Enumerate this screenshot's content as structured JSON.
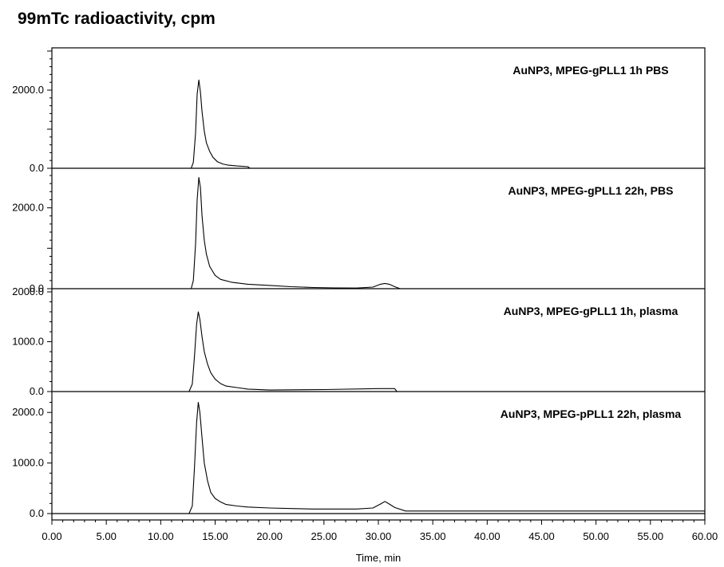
{
  "chart_data": {
    "type": "line",
    "title": "99mTc radioactivity, cpm",
    "xlabel": "Time, min",
    "ylabel": "",
    "xlim": [
      0,
      60
    ],
    "x_ticks": [
      "0.00",
      "5.00",
      "10.00",
      "15.00",
      "20.00",
      "25.00",
      "30.00",
      "35.00",
      "40.00",
      "45.00",
      "50.00",
      "55.00",
      "60.00"
    ],
    "grid": false,
    "panels": [
      {
        "name": "AuNP3, MPEG-gPLL1 1h PBS",
        "ylim": [
          0,
          3000
        ],
        "y_ticks": [
          {
            "value": 0,
            "label": "0.0"
          },
          {
            "value": 2000,
            "label": "2000.0"
          }
        ],
        "x": [
          0,
          12.8,
          13.0,
          13.2,
          13.35,
          13.5,
          13.65,
          13.8,
          14.0,
          14.2,
          14.5,
          14.8,
          15.2,
          15.7,
          16.2,
          17.0,
          18.0,
          18.2,
          60
        ],
        "y": [
          0,
          0,
          150,
          900,
          1900,
          2260,
          1950,
          1450,
          950,
          650,
          430,
          280,
          170,
          110,
          80,
          60,
          40,
          0,
          0
        ]
      },
      {
        "name": "AuNP3, MPEG-gPLL1 22h, PBS",
        "ylim": [
          0,
          2900
        ],
        "y_ticks": [
          {
            "value": 0,
            "label": "0.0"
          },
          {
            "value": 2000,
            "label": "2000.0"
          }
        ],
        "x": [
          0,
          12.8,
          13.0,
          13.2,
          13.35,
          13.5,
          13.65,
          13.8,
          14.0,
          14.2,
          14.5,
          15.0,
          15.5,
          16.5,
          18.0,
          20.0,
          22.0,
          24.0,
          26.0,
          28.0,
          29.5,
          30.2,
          30.6,
          31.0,
          31.5,
          32.0,
          60
        ],
        "y": [
          0,
          0,
          200,
          1100,
          2200,
          2750,
          2500,
          1800,
          1200,
          850,
          550,
          330,
          230,
          160,
          110,
          80,
          50,
          30,
          20,
          15,
          40,
          110,
          130,
          110,
          50,
          0,
          0
        ]
      },
      {
        "name": "AuNP3, MPEG-gPLL1 1h, plasma",
        "ylim": [
          0,
          2000
        ],
        "y_ticks": [
          {
            "value": 0,
            "label": "0.0"
          },
          {
            "value": 1000,
            "label": "1000.0"
          },
          {
            "value": 2000,
            "label": "2000.0"
          }
        ],
        "x": [
          0,
          12.6,
          12.9,
          13.1,
          13.3,
          13.45,
          13.6,
          13.8,
          14.0,
          14.3,
          14.6,
          15.0,
          15.5,
          16.0,
          17.0,
          18.0,
          20.0,
          25.0,
          30.0,
          31.5,
          31.7,
          60
        ],
        "y": [
          0,
          0,
          150,
          700,
          1350,
          1600,
          1450,
          1100,
          800,
          550,
          380,
          250,
          160,
          110,
          80,
          50,
          30,
          40,
          60,
          60,
          0,
          0
        ]
      },
      {
        "name": "AuNP3, MPEG-pPLL1 22h, plasma",
        "ylim": [
          0,
          2350
        ],
        "y_ticks": [
          {
            "value": 0,
            "label": "0.0"
          },
          {
            "value": 1000,
            "label": "1000.0"
          },
          {
            "value": 2000,
            "label": "2000.0"
          }
        ],
        "x": [
          0,
          12.6,
          12.9,
          13.1,
          13.3,
          13.45,
          13.6,
          13.8,
          14.0,
          14.3,
          14.6,
          15.0,
          15.5,
          16.0,
          17.0,
          18.0,
          20.0,
          22.0,
          24.0,
          26.0,
          28.0,
          29.5,
          30.2,
          30.6,
          31.0,
          31.5,
          32.5,
          60
        ],
        "y": [
          0,
          0,
          150,
          900,
          1800,
          2200,
          2000,
          1500,
          1000,
          650,
          420,
          300,
          230,
          180,
          150,
          130,
          110,
          100,
          90,
          90,
          90,
          110,
          190,
          240,
          190,
          120,
          50,
          50
        ]
      }
    ]
  }
}
